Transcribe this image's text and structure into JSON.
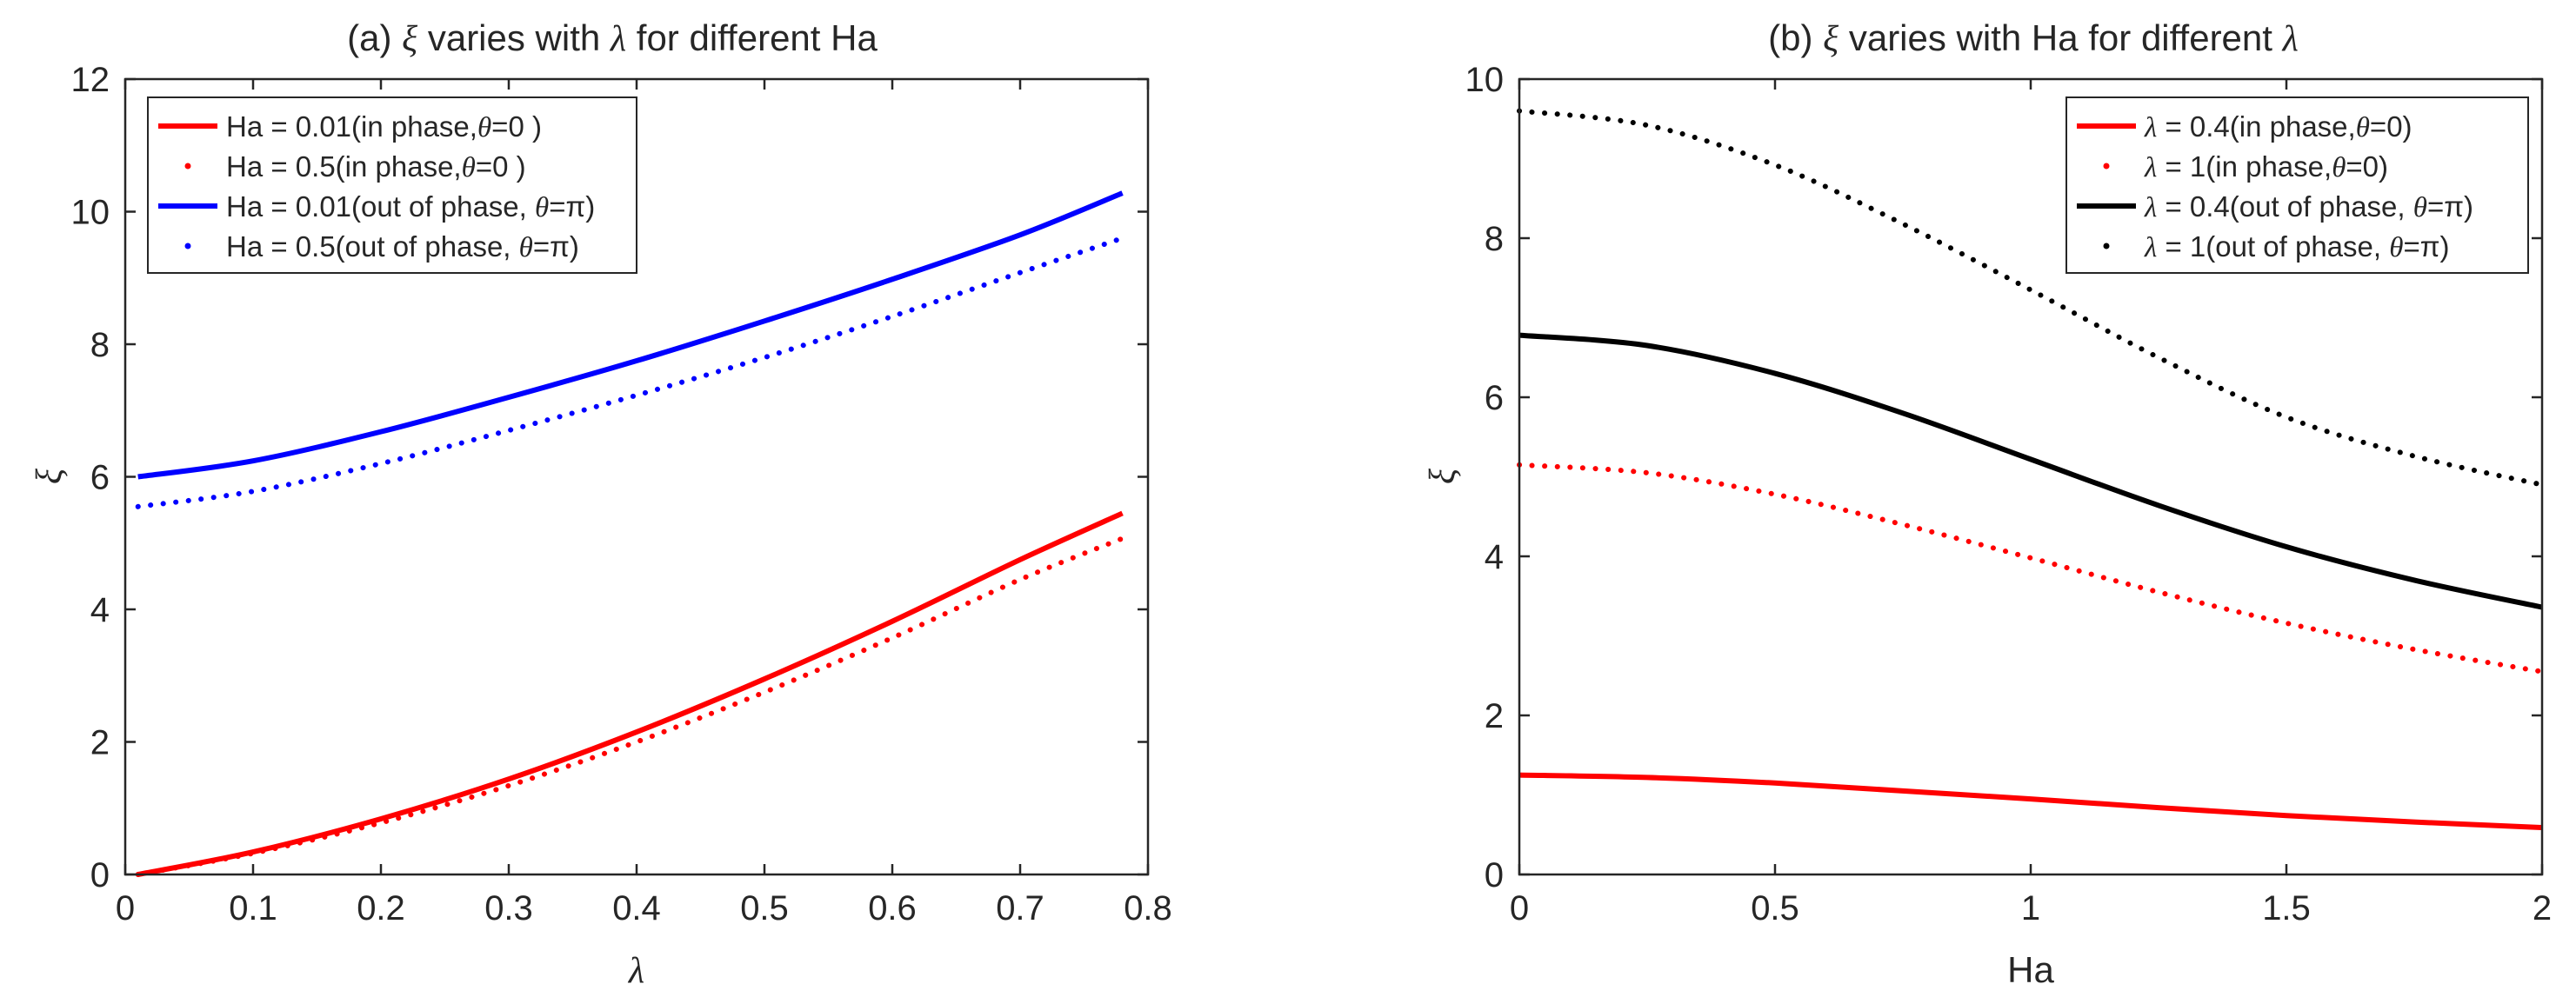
{
  "colors": {
    "red": "#ff0000",
    "blue": "#0000ff",
    "black": "#000000",
    "axis": "#262626"
  },
  "chart_data": [
    {
      "type": "line",
      "title": "(a) ξ varies with λ for different Ha",
      "xlabel": "λ",
      "ylabel": "ξ",
      "xlim": [
        0,
        0.8
      ],
      "ylim": [
        0,
        12
      ],
      "xticks": [
        0,
        0.1,
        0.2,
        0.3,
        0.4,
        0.5,
        0.6,
        0.7,
        0.8
      ],
      "yticks": [
        0,
        2,
        4,
        6,
        8,
        10,
        12
      ],
      "xtick_labels": [
        "0",
        "0.1",
        "0.2",
        "0.3",
        "0.4",
        "0.5",
        "0.6",
        "0.7",
        "0.8"
      ],
      "ytick_labels": [
        "0",
        "2",
        "4",
        "6",
        "8",
        "10",
        "12"
      ],
      "legend_position": "top-left",
      "series": [
        {
          "name": "Ha = 0.01(in phase,θ=0 )",
          "label_main": "Ha = 0.01(in phase,",
          "label_sym": "θ",
          "label_tail": "=0 )",
          "style": "solid",
          "color": "#ff0000",
          "x": [
            0.01,
            0.1,
            0.2,
            0.3,
            0.4,
            0.5,
            0.6,
            0.7,
            0.78
          ],
          "y": [
            0.0,
            0.34,
            0.84,
            1.44,
            2.15,
            2.95,
            3.82,
            4.75,
            5.45
          ]
        },
        {
          "name": "Ha = 0.5(in phase,θ=0 )",
          "label_main": "Ha = 0.5(in phase,",
          "label_sym": "θ",
          "label_tail": "=0 )",
          "style": "dotted",
          "color": "#ff0000",
          "x": [
            0.01,
            0.1,
            0.2,
            0.3,
            0.4,
            0.5,
            0.6,
            0.7,
            0.78
          ],
          "y": [
            0.0,
            0.32,
            0.78,
            1.34,
            2.0,
            2.75,
            3.57,
            4.45,
            5.07
          ]
        },
        {
          "name": "Ha = 0.01(out of phase, θ=π)",
          "label_main": "Ha = 0.01(out of phase, ",
          "label_sym": "θ",
          "label_tail": "=π)",
          "style": "solid",
          "color": "#0000ff",
          "x": [
            0.01,
            0.1,
            0.2,
            0.3,
            0.4,
            0.5,
            0.6,
            0.7,
            0.78
          ],
          "y": [
            6.0,
            6.24,
            6.68,
            7.2,
            7.75,
            8.35,
            8.98,
            9.65,
            10.28
          ]
        },
        {
          "name": "Ha = 0.5(out of phase, θ=π)",
          "label_main": "Ha = 0.5(out of phase, ",
          "label_sym": "θ",
          "label_tail": "=π)",
          "style": "dotted",
          "color": "#0000ff",
          "x": [
            0.01,
            0.1,
            0.2,
            0.3,
            0.4,
            0.5,
            0.6,
            0.7,
            0.78
          ],
          "y": [
            5.55,
            5.78,
            6.2,
            6.7,
            7.23,
            7.8,
            8.42,
            9.08,
            9.6
          ]
        }
      ]
    },
    {
      "type": "line",
      "title": "(b) ξ varies with Ha for different λ",
      "xlabel": "Ha",
      "ylabel": "ξ",
      "xlim": [
        0,
        2
      ],
      "ylim": [
        0,
        10
      ],
      "xticks": [
        0,
        0.5,
        1,
        1.5,
        2
      ],
      "yticks": [
        0,
        2,
        4,
        6,
        8,
        10
      ],
      "xtick_labels": [
        "0",
        "0.5",
        "1",
        "1.5",
        "2"
      ],
      "ytick_labels": [
        "0",
        "2",
        "4",
        "6",
        "8",
        "10"
      ],
      "legend_position": "top-right",
      "series": [
        {
          "name": "λ = 0.4(in phase,θ=0)",
          "label_main": "λ",
          "label_mid": " = 0.4(in phase,",
          "label_sym": "θ",
          "label_tail": "=0)",
          "style": "solid",
          "color": "#ff0000",
          "x": [
            0,
            0.25,
            0.5,
            0.75,
            1.0,
            1.25,
            1.5,
            1.75,
            2.0
          ],
          "y": [
            1.25,
            1.22,
            1.15,
            1.05,
            0.95,
            0.84,
            0.74,
            0.66,
            0.59
          ]
        },
        {
          "name": "λ = 1(in phase,θ=0)",
          "label_main": "λ",
          "label_mid": " = 1(in phase,",
          "label_sym": "θ",
          "label_tail": "=0)",
          "style": "dotted",
          "color": "#ff0000",
          "x": [
            0,
            0.25,
            0.5,
            0.75,
            1.0,
            1.25,
            1.5,
            1.75,
            2.0
          ],
          "y": [
            5.15,
            5.05,
            4.78,
            4.4,
            3.98,
            3.55,
            3.16,
            2.83,
            2.55
          ]
        },
        {
          "name": "λ = 0.4(out of phase, θ=π)",
          "label_main": "λ",
          "label_mid": " = 0.4(out of phase, ",
          "label_sym": "θ",
          "label_tail": "=π)",
          "style": "solid",
          "color": "#000000",
          "x": [
            0,
            0.25,
            0.5,
            0.75,
            1.0,
            1.25,
            1.5,
            1.75,
            2.0
          ],
          "y": [
            6.78,
            6.65,
            6.3,
            5.8,
            5.22,
            4.64,
            4.12,
            3.7,
            3.36
          ]
        },
        {
          "name": "λ = 1(out of phase, θ=π)",
          "label_main": "λ",
          "label_mid": " = 1(out of phase, ",
          "label_sym": "θ",
          "label_tail": "=π)",
          "style": "dotted",
          "color": "#000000",
          "x": [
            0,
            0.25,
            0.5,
            0.75,
            1.0,
            1.25,
            1.5,
            1.75,
            2.0
          ],
          "y": [
            9.6,
            9.42,
            8.92,
            8.18,
            7.35,
            6.5,
            5.75,
            5.26,
            4.9
          ]
        }
      ]
    }
  ]
}
